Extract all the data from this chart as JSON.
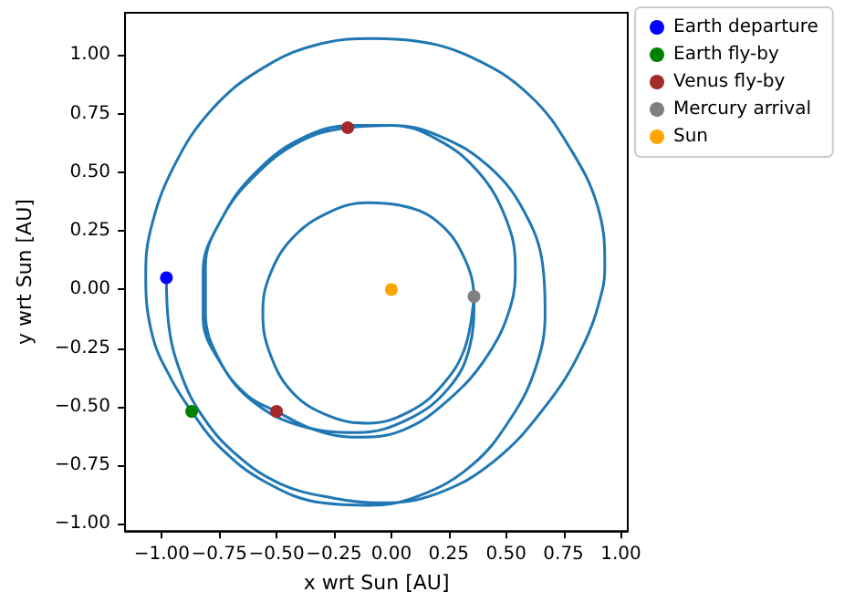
{
  "chart_data": {
    "type": "line",
    "xlabel": "x wrt Sun [AU]",
    "ylabel": "y wrt Sun [AU]",
    "xlim": [
      -1.16,
      1.03
    ],
    "ylim": [
      -1.03,
      1.18
    ],
    "xticks": [
      {
        "value": -1,
        "label": "−1.00"
      },
      {
        "value": -0.75,
        "label": "−0.75"
      },
      {
        "value": -0.5,
        "label": "−0.50"
      },
      {
        "value": -0.25,
        "label": "−0.25"
      },
      {
        "value": 0,
        "label": "0.00"
      },
      {
        "value": 0.25,
        "label": "0.25"
      },
      {
        "value": 0.5,
        "label": "0.50"
      },
      {
        "value": 0.75,
        "label": "0.75"
      },
      {
        "value": 1,
        "label": "1.00"
      }
    ],
    "yticks": [
      {
        "value": -1,
        "label": "−1.00"
      },
      {
        "value": -0.75,
        "label": "−0.75"
      },
      {
        "value": -0.5,
        "label": "−0.50"
      },
      {
        "value": -0.25,
        "label": "−0.25"
      },
      {
        "value": 0,
        "label": "0.00"
      },
      {
        "value": 0.25,
        "label": "0.25"
      },
      {
        "value": 0.5,
        "label": "0.50"
      },
      {
        "value": 0.75,
        "label": "0.75"
      },
      {
        "value": 1,
        "label": "1.00"
      }
    ],
    "grid": false,
    "legend": "top right",
    "series": [
      {
        "marker": "none",
        "color": "#1f77b4",
        "x": [
          -0.98,
          -0.97,
          -0.92,
          -0.83,
          -0.68,
          -0.48,
          -0.25,
          -0.05,
          0.2,
          0.45,
          0.67,
          0.83,
          0.92,
          0.93,
          0.9,
          0.78,
          0.6,
          0.35,
          0.1,
          -0.08,
          -0.3,
          -0.55,
          -0.78,
          -0.95,
          -1.05,
          -1.07,
          -1.04,
          -0.96,
          -0.87,
          -0.75,
          -0.55,
          -0.3,
          -0.1,
          0.12,
          0.35,
          0.52,
          0.63,
          0.67,
          0.66,
          0.58,
          0.43,
          0.22,
          0,
          -0.19,
          -0.4,
          -0.6,
          -0.74,
          -0.81,
          -0.81,
          -0.75,
          -0.63,
          -0.5,
          -0.33,
          -0.15,
          0.05,
          0.25,
          0.42,
          0.52,
          0.54,
          0.5,
          0.38,
          0.2,
          0,
          -0.17,
          -0.4,
          -0.6,
          -0.74,
          -0.82,
          -0.82,
          -0.74,
          -0.6,
          -0.4,
          -0.15,
          0.08,
          0.25,
          0.34,
          0.36,
          0.32,
          0.2,
          0.03,
          -0.1,
          -0.27,
          -0.43,
          -0.53,
          -0.56,
          -0.53,
          -0.43,
          -0.27,
          -0.1,
          0.08,
          0.22,
          0.32,
          0.36
        ],
        "values": [
          0.05,
          -0.15,
          -0.35,
          -0.53,
          -0.7,
          -0.83,
          -0.89,
          -0.91,
          -0.87,
          -0.73,
          -0.5,
          -0.25,
          0,
          0.1,
          0.35,
          0.6,
          0.83,
          0.99,
          1.06,
          1.07,
          1.05,
          0.95,
          0.77,
          0.52,
          0.25,
          0.05,
          -0.2,
          -0.38,
          -0.52,
          -0.67,
          -0.82,
          -0.91,
          -0.92,
          -0.88,
          -0.75,
          -0.55,
          -0.33,
          -0.1,
          0.1,
          0.33,
          0.52,
          0.65,
          0.7,
          0.69,
          0.63,
          0.48,
          0.3,
          0.1,
          -0.1,
          -0.3,
          -0.45,
          -0.52,
          -0.6,
          -0.63,
          -0.6,
          -0.47,
          -0.28,
          -0.07,
          0.1,
          0.3,
          0.5,
          0.64,
          0.7,
          0.7,
          0.64,
          0.49,
          0.3,
          0.08,
          -0.12,
          -0.32,
          -0.48,
          -0.58,
          -0.61,
          -0.55,
          -0.42,
          -0.25,
          -0.05,
          0.13,
          0.29,
          0.36,
          0.37,
          0.33,
          0.22,
          0.06,
          -0.1,
          -0.27,
          -0.44,
          -0.54,
          -0.57,
          -0.52,
          -0.41,
          -0.25,
          -0.03
        ]
      },
      {
        "type": "scatter",
        "name": "Earth departure",
        "color": "#0000ff",
        "x": [
          -0.98
        ],
        "values": [
          0.05
        ]
      },
      {
        "type": "scatter",
        "name": "Earth fly-by",
        "color": "#008000",
        "x": [
          -0.87
        ],
        "values": [
          -0.52
        ]
      },
      {
        "type": "scatter",
        "name": "Venus fly-by",
        "color": "#a52a2a",
        "x": [
          -0.19,
          -0.5
        ],
        "values": [
          0.69,
          -0.52
        ]
      },
      {
        "type": "scatter",
        "name": "Mercury arrival",
        "color": "#808080",
        "x": [
          0.36
        ],
        "values": [
          -0.03
        ]
      },
      {
        "type": "scatter",
        "name": "Sun",
        "color": "#ffa500",
        "x": [
          0
        ],
        "values": [
          0
        ]
      }
    ],
    "marker": "circle"
  }
}
